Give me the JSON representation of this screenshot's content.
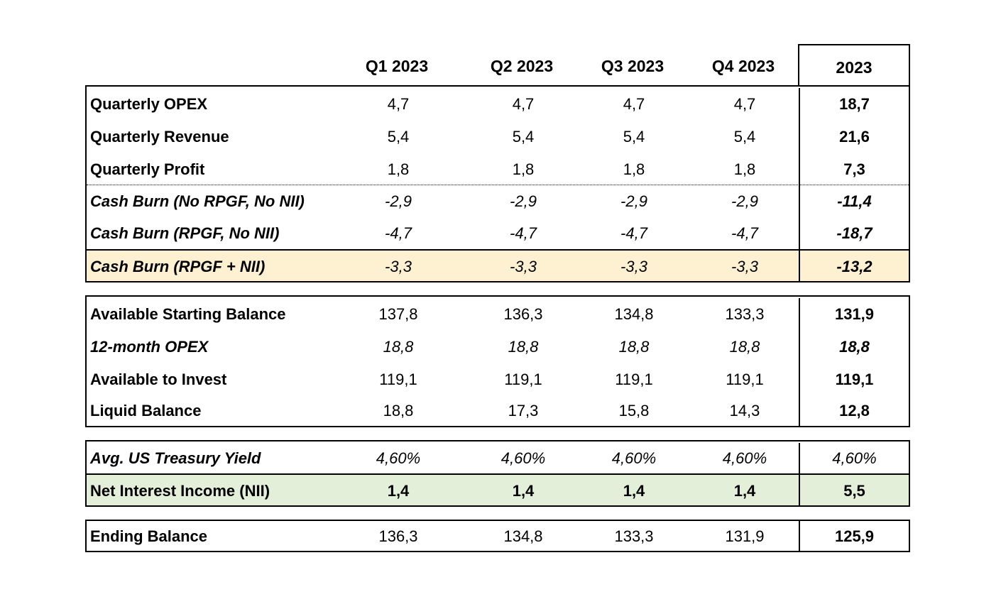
{
  "header": {
    "q1": "Q1 2023",
    "q2": "Q2 2023",
    "q3": "Q3 2023",
    "q4": "Q4 2023",
    "total": "2023"
  },
  "section1": [
    {
      "label": "Quarterly OPEX",
      "q1": "4,7",
      "q2": "4,7",
      "q3": "4,7",
      "q4": "4,7",
      "total": "18,7"
    },
    {
      "label": "Quarterly Revenue",
      "q1": "5,4",
      "q2": "5,4",
      "q3": "5,4",
      "q4": "5,4",
      "total": "21,6"
    },
    {
      "label": "Quarterly Profit",
      "q1": "1,8",
      "q2": "1,8",
      "q3": "1,8",
      "q4": "1,8",
      "total": "7,3"
    },
    {
      "label": "Cash Burn (No RPGF, No NII)",
      "q1": "-2,9",
      "q2": "-2,9",
      "q3": "-2,9",
      "q4": "-2,9",
      "total": "-11,4"
    },
    {
      "label": "Cash Burn (RPGF, No NII)",
      "q1": "-4,7",
      "q2": "-4,7",
      "q3": "-4,7",
      "q4": "-4,7",
      "total": "-18,7"
    },
    {
      "label": "Cash Burn (RPGF + NII)",
      "q1": "-3,3",
      "q2": "-3,3",
      "q3": "-3,3",
      "q4": "-3,3",
      "total": "-13,2"
    }
  ],
  "section2": [
    {
      "label": "Available Starting Balance",
      "q1": "137,8",
      "q2": "136,3",
      "q3": "134,8",
      "q4": "133,3",
      "total": "131,9"
    },
    {
      "label": "12-month OPEX",
      "q1": "18,8",
      "q2": "18,8",
      "q3": "18,8",
      "q4": "18,8",
      "total": "18,8"
    },
    {
      "label": "Available to Invest",
      "q1": "119,1",
      "q2": "119,1",
      "q3": "119,1",
      "q4": "119,1",
      "total": "119,1"
    },
    {
      "label": "Liquid Balance",
      "q1": "18,8",
      "q2": "17,3",
      "q3": "15,8",
      "q4": "14,3",
      "total": "12,8"
    }
  ],
  "section3": [
    {
      "label": "Avg. US Treasury Yield",
      "q1": "4,60%",
      "q2": "4,60%",
      "q3": "4,60%",
      "q4": "4,60%",
      "total": "4,60%"
    },
    {
      "label": "Net Interest Income (NII)",
      "q1": "1,4",
      "q2": "1,4",
      "q3": "1,4",
      "q4": "1,4",
      "total": "5,5"
    }
  ],
  "section4": [
    {
      "label": "Ending Balance",
      "q1": "136,3",
      "q2": "134,8",
      "q3": "133,3",
      "q4": "131,9",
      "total": "125,9"
    }
  ],
  "colors": {
    "highlight_yellow": "#fef1d2",
    "highlight_green": "#e4efda"
  }
}
